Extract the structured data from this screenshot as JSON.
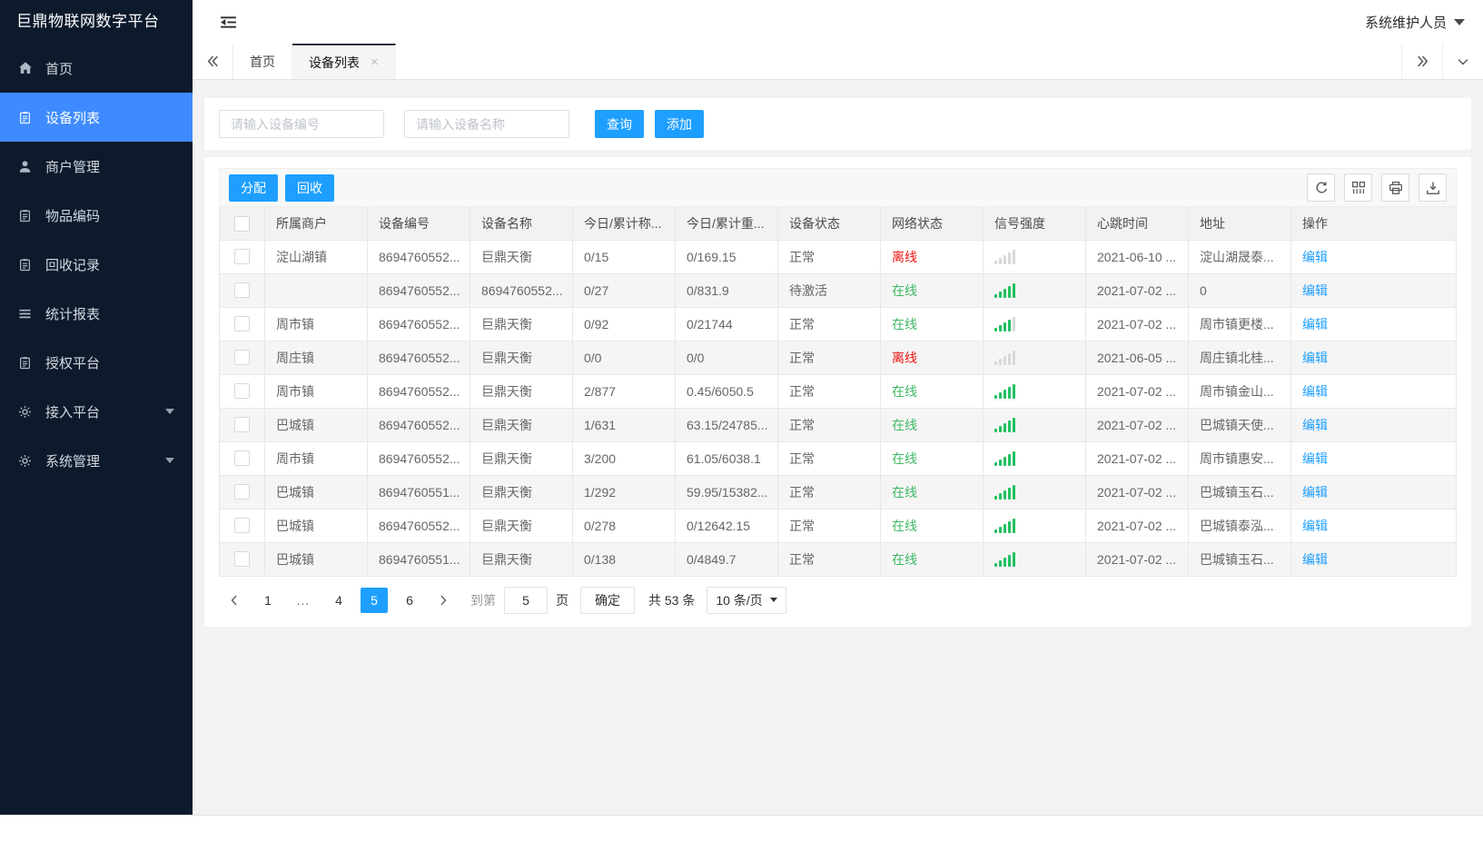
{
  "app": {
    "title": "巨鼎物联网数字平台",
    "user": "系统维护人员"
  },
  "sidebar": {
    "items": [
      {
        "label": "首页",
        "icon": "home-icon",
        "active": false,
        "arrow": false
      },
      {
        "label": "设备列表",
        "icon": "clipboard-icon",
        "active": true,
        "arrow": false
      },
      {
        "label": "商户管理",
        "icon": "user-icon",
        "active": false,
        "arrow": false
      },
      {
        "label": "物品编码",
        "icon": "clipboard-icon",
        "active": false,
        "arrow": false
      },
      {
        "label": "回收记录",
        "icon": "clipboard-icon",
        "active": false,
        "arrow": false
      },
      {
        "label": "统计报表",
        "icon": "report-icon",
        "active": false,
        "arrow": false
      },
      {
        "label": "授权平台",
        "icon": "clipboard-icon",
        "active": false,
        "arrow": false
      },
      {
        "label": "接入平台",
        "icon": "gear-icon",
        "active": false,
        "arrow": true
      },
      {
        "label": "系统管理",
        "icon": "gear-icon",
        "active": false,
        "arrow": true
      }
    ]
  },
  "tabs": [
    {
      "label": "首页",
      "active": false
    },
    {
      "label": "设备列表",
      "active": true,
      "closable": true
    }
  ],
  "search": {
    "device_no_placeholder": "请输入设备编号",
    "device_name_placeholder": "请输入设备名称",
    "query_label": "查询",
    "add_label": "添加"
  },
  "toolbar": {
    "assign_label": "分配",
    "recycle_label": "回收",
    "icons": [
      "refresh-icon",
      "columns-icon",
      "print-icon",
      "export-icon"
    ]
  },
  "table": {
    "headers": [
      "所属商户",
      "设备编号",
      "设备名称",
      "今日/累计称...",
      "今日/累计重...",
      "设备状态",
      "网络状态",
      "信号强度",
      "心跳时间",
      "地址",
      "操作"
    ],
    "edit_label": "编辑",
    "rows": [
      {
        "merchant": "淀山湖镇",
        "device_no": "8694760552...",
        "device_name": "巨鼎天衡",
        "today_count": "0/15",
        "today_weight": "0/169.15",
        "device_status": "正常",
        "network_status": "离线",
        "online": false,
        "signal": 0,
        "heartbeat": "2021-06-10 ...",
        "address": "淀山湖晟泰..."
      },
      {
        "merchant": "",
        "device_no": "8694760552...",
        "device_name": "8694760552...",
        "today_count": "0/27",
        "today_weight": "0/831.9",
        "device_status": "待激活",
        "network_status": "在线",
        "online": true,
        "signal": 5,
        "heartbeat": "2021-07-02 ...",
        "address": "0"
      },
      {
        "merchant": "周市镇",
        "device_no": "8694760552...",
        "device_name": "巨鼎天衡",
        "today_count": "0/92",
        "today_weight": "0/21744",
        "device_status": "正常",
        "network_status": "在线",
        "online": true,
        "signal": 4,
        "heartbeat": "2021-07-02 ...",
        "address": "周市镇更楼..."
      },
      {
        "merchant": "周庄镇",
        "device_no": "8694760552...",
        "device_name": "巨鼎天衡",
        "today_count": "0/0",
        "today_weight": "0/0",
        "device_status": "正常",
        "network_status": "离线",
        "online": false,
        "signal": 0,
        "heartbeat": "2021-06-05 ...",
        "address": "周庄镇北桂..."
      },
      {
        "merchant": "周市镇",
        "device_no": "8694760552...",
        "device_name": "巨鼎天衡",
        "today_count": "2/877",
        "today_weight": "0.45/6050.5",
        "device_status": "正常",
        "network_status": "在线",
        "online": true,
        "signal": 5,
        "heartbeat": "2021-07-02 ...",
        "address": "周市镇金山..."
      },
      {
        "merchant": "巴城镇",
        "device_no": "8694760552...",
        "device_name": "巨鼎天衡",
        "today_count": "1/631",
        "today_weight": "63.15/24785...",
        "device_status": "正常",
        "network_status": "在线",
        "online": true,
        "signal": 5,
        "heartbeat": "2021-07-02 ...",
        "address": "巴城镇天使..."
      },
      {
        "merchant": "周市镇",
        "device_no": "8694760552...",
        "device_name": "巨鼎天衡",
        "today_count": "3/200",
        "today_weight": "61.05/6038.1",
        "device_status": "正常",
        "network_status": "在线",
        "online": true,
        "signal": 5,
        "heartbeat": "2021-07-02 ...",
        "address": "周市镇惠安..."
      },
      {
        "merchant": "巴城镇",
        "device_no": "8694760551...",
        "device_name": "巨鼎天衡",
        "today_count": "1/292",
        "today_weight": "59.95/15382...",
        "device_status": "正常",
        "network_status": "在线",
        "online": true,
        "signal": 5,
        "heartbeat": "2021-07-02 ...",
        "address": "巴城镇玉石..."
      },
      {
        "merchant": "巴城镇",
        "device_no": "8694760552...",
        "device_name": "巨鼎天衡",
        "today_count": "0/278",
        "today_weight": "0/12642.15",
        "device_status": "正常",
        "network_status": "在线",
        "online": true,
        "signal": 5,
        "heartbeat": "2021-07-02 ...",
        "address": "巴城镇泰泓..."
      },
      {
        "merchant": "巴城镇",
        "device_no": "8694760551...",
        "device_name": "巨鼎天衡",
        "today_count": "0/138",
        "today_weight": "0/4849.7",
        "device_status": "正常",
        "network_status": "在线",
        "online": true,
        "signal": 5,
        "heartbeat": "2021-07-02 ...",
        "address": "巴城镇玉石..."
      }
    ]
  },
  "pagination": {
    "pages": [
      "1",
      "...",
      "4",
      "5",
      "6"
    ],
    "active": "5",
    "jump_label": "到第",
    "jump_value": "5",
    "page_label": "页",
    "confirm_label": "确定",
    "total_label": "共 53 条",
    "per_page": "10 条/页"
  },
  "colors": {
    "primary": "#1E9FFF",
    "sidebar_active": "#3e8bff",
    "online": "#3db764",
    "offline": "#f01414",
    "signal_on": "#21c05f",
    "signal_off": "#d8d8d8"
  }
}
